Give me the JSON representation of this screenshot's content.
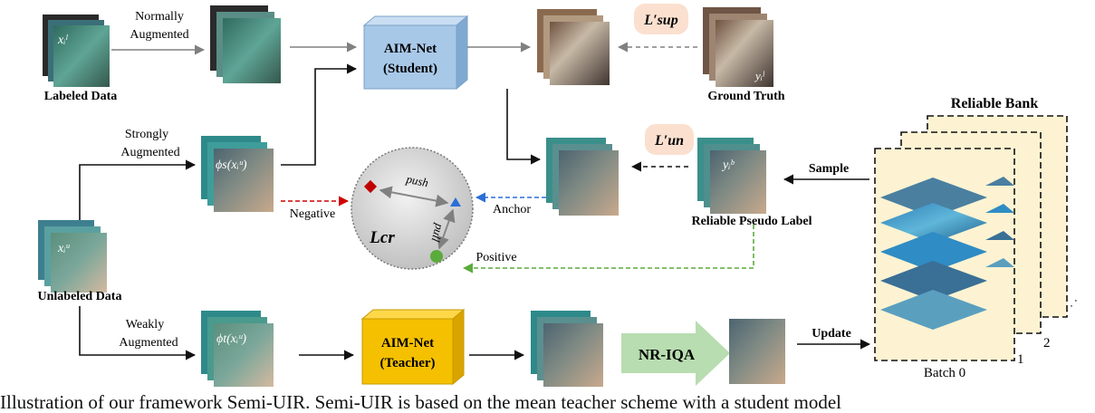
{
  "labels": {
    "normally_augmented": [
      "Normally",
      "Augmented"
    ],
    "strongly_augmented": [
      "Strongly",
      "Augmented"
    ],
    "weakly_augmented": [
      "Weakly",
      "Augmented"
    ],
    "labeled_data": "Labeled Data",
    "unlabeled_data": "Unlabeled Data",
    "ground_truth": "Ground Truth",
    "reliable_pseudo_label": "Reliable Pseudo Label",
    "reliable_bank": "Reliable Bank",
    "sample": "Sample",
    "update": "Update",
    "negative": "Negative",
    "anchor": "Anchor",
    "positive": "Positive",
    "push": "push",
    "pull": "pull",
    "batch_0": "Batch 0",
    "batch_1": "1",
    "batch_2": "2",
    "ellipsis": "· · ·"
  },
  "math": {
    "l_sup": "L′sup",
    "l_un": "L′un",
    "l_cr": "Lcr",
    "x_l": "xᵢˡ",
    "x_u": "xᵢᵘ",
    "y_l": "yᵢˡ",
    "y_b": "yᵢᵇ",
    "phi_s": "ϕs(xᵢᵘ)",
    "phi_t": "ϕt(xᵢᵘ)"
  },
  "student": {
    "line1": "AIM-Net",
    "line2": "(Student)"
  },
  "teacher": {
    "line1": "AIM-Net",
    "line2": "(Teacher)"
  },
  "nriqa": "NR-IQA",
  "caption": "Illustration of our framework Semi-UIR. Semi-UIR is based on the mean teacher scheme with a student model",
  "colors": {
    "student_box": "#a8c8e8",
    "teacher_box": "#f5c000",
    "nriqa_arrow": "#b8ddb0",
    "loss_pill": "#fbe0d0",
    "bank_card": "#fdf3d2",
    "negative": "#d00000",
    "anchor": "#2b6fd6",
    "positive": "#5bab3c",
    "gray_arrow": "#808080"
  }
}
